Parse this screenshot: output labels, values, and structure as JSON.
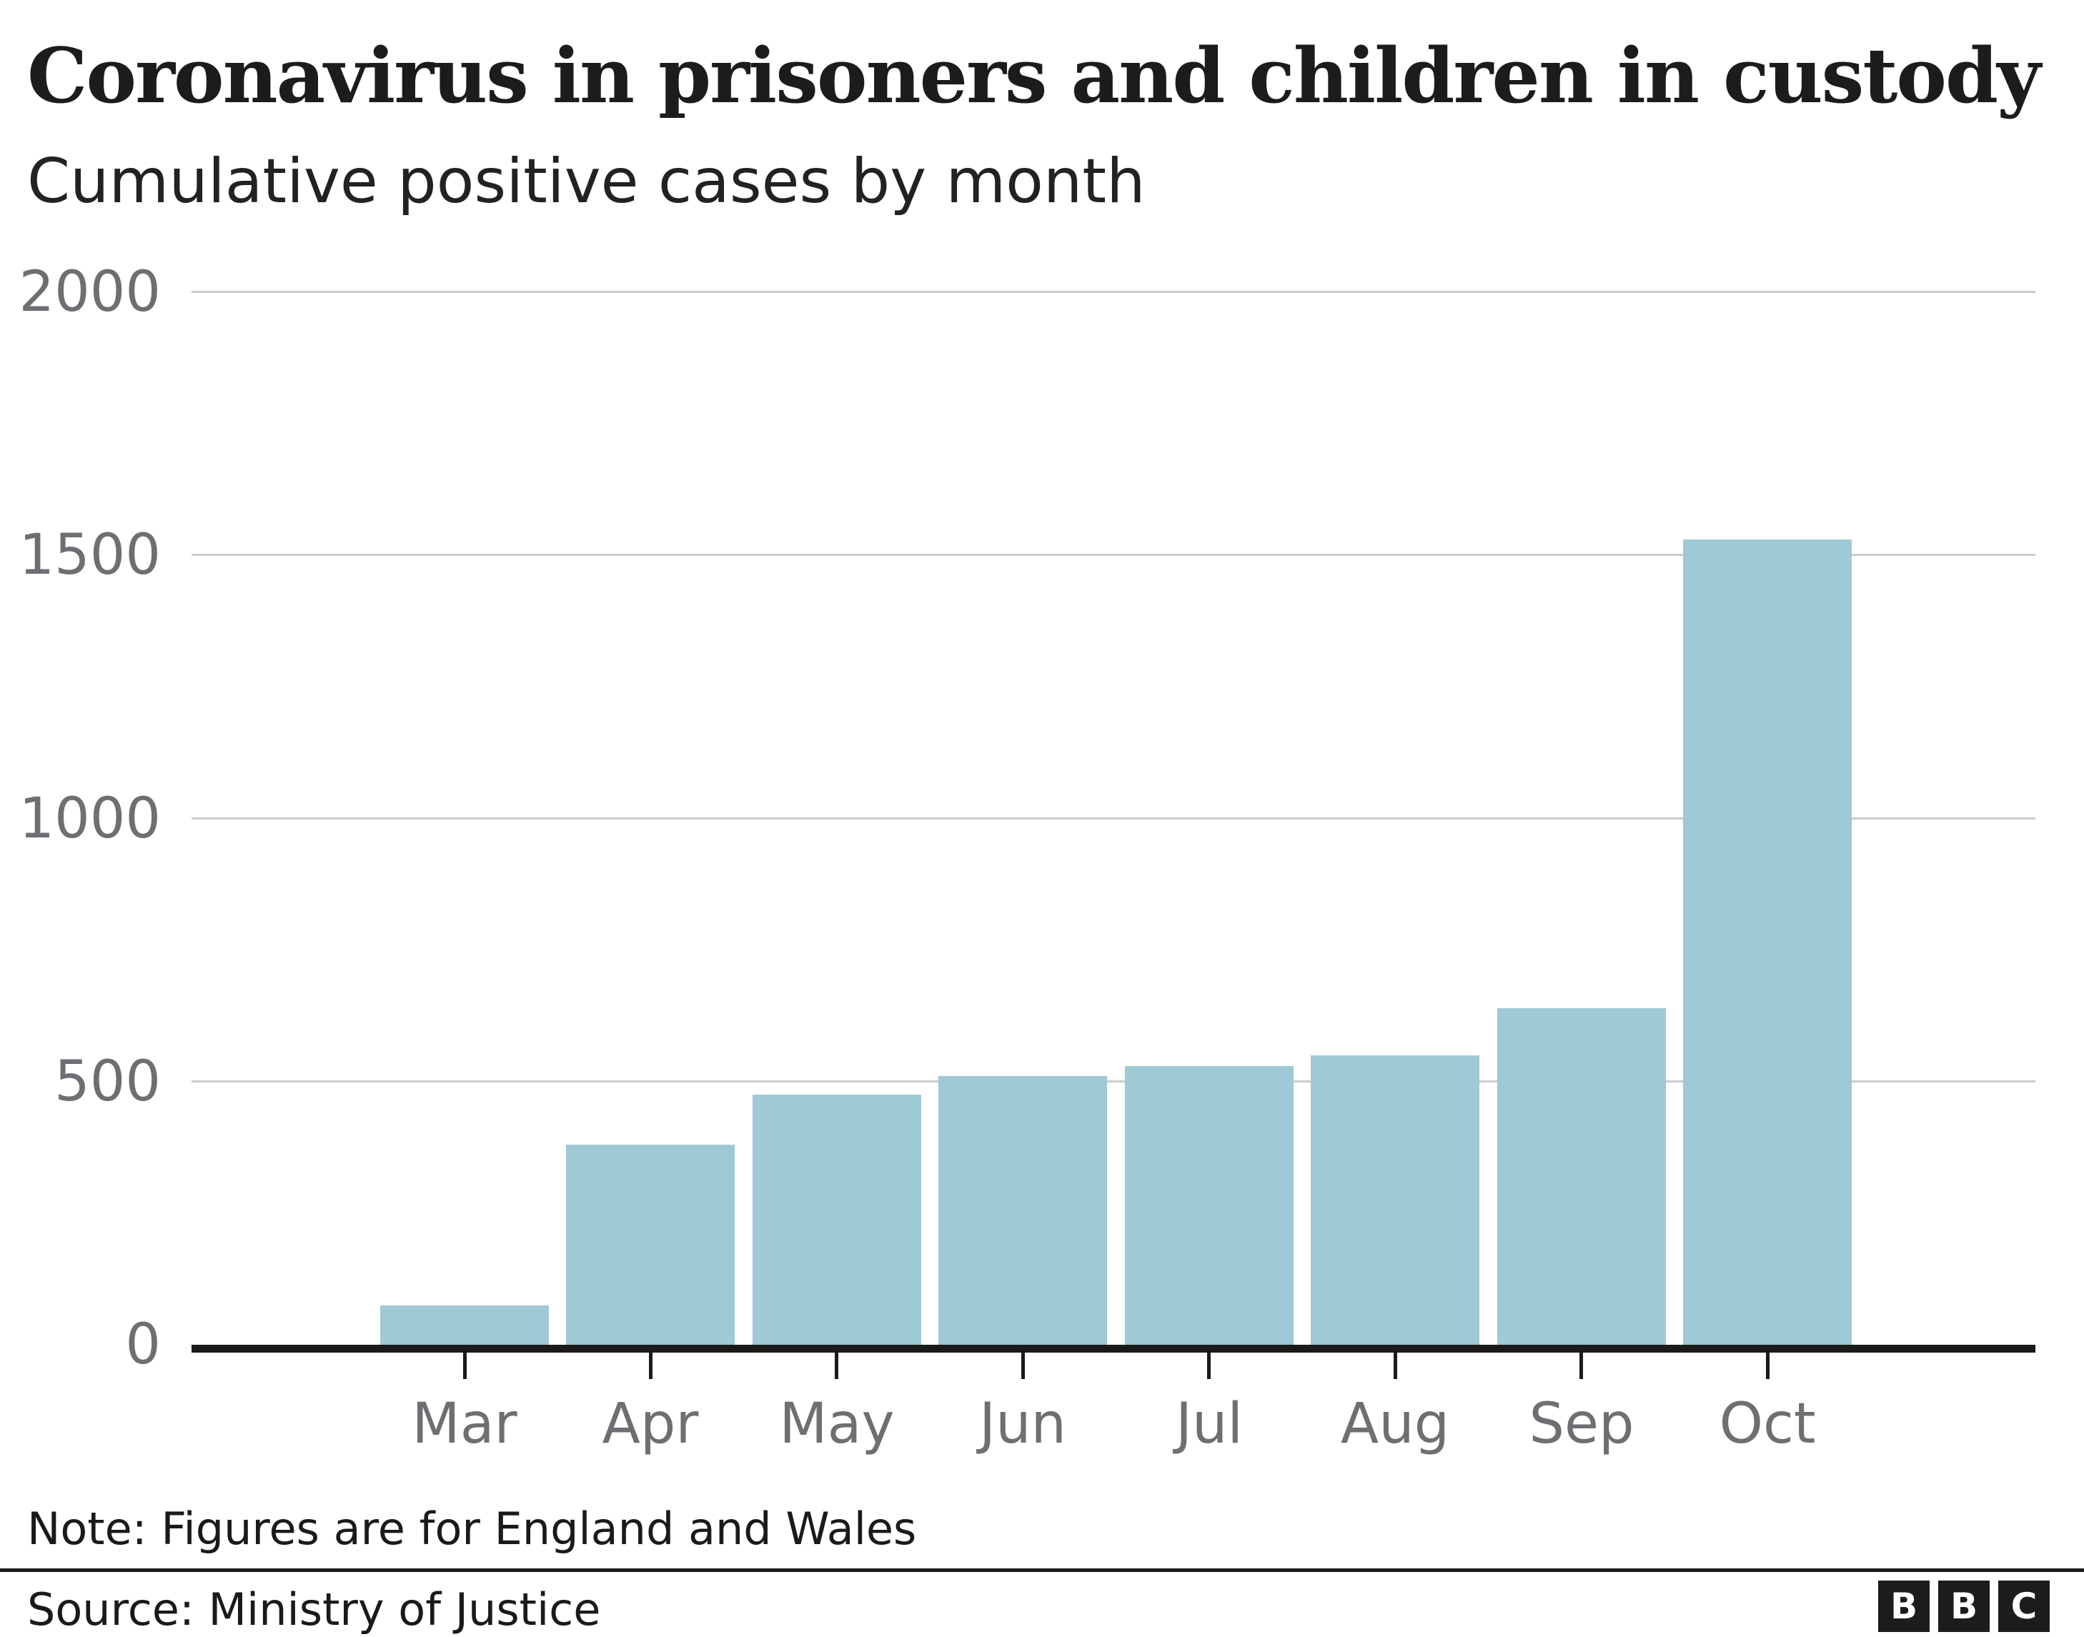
{
  "title": "Coronavirus in prisoners and children in custody",
  "subtitle": "Cumulative positive cases by month",
  "chart_data": {
    "type": "bar",
    "categories": [
      "Mar",
      "Apr",
      "May",
      "Jun",
      "Jul",
      "Aug",
      "Sep",
      "Oct"
    ],
    "values": [
      75,
      380,
      475,
      510,
      530,
      550,
      640,
      1530
    ],
    "title": "Coronavirus in prisoners and children in custody",
    "subtitle": "Cumulative positive cases by month",
    "xlabel": "",
    "ylabel": "",
    "ylim": [
      0,
      2000
    ],
    "yticks": [
      0,
      500,
      1000,
      1500,
      2000
    ],
    "grid": true,
    "legend": "none",
    "bar_color": "#9fc9d4"
  },
  "footer": {
    "note": "Note: Figures are for England and Wales",
    "source": "Source: Ministry of Justice"
  },
  "logo": {
    "letters": [
      "B",
      "B",
      "C"
    ]
  },
  "colors": {
    "bar": "#9fc9d4",
    "gridline": "#cccccc",
    "axis": "#1a1a1a",
    "tick_label": "#6e6e73",
    "title_text": "#1c1c1c",
    "subtitle_text": "#222222",
    "footer_text": "#1a1a1a",
    "divider": "#1a1a1a",
    "logo_bg": "#1c1c1c",
    "logo_text": "#ffffff"
  }
}
